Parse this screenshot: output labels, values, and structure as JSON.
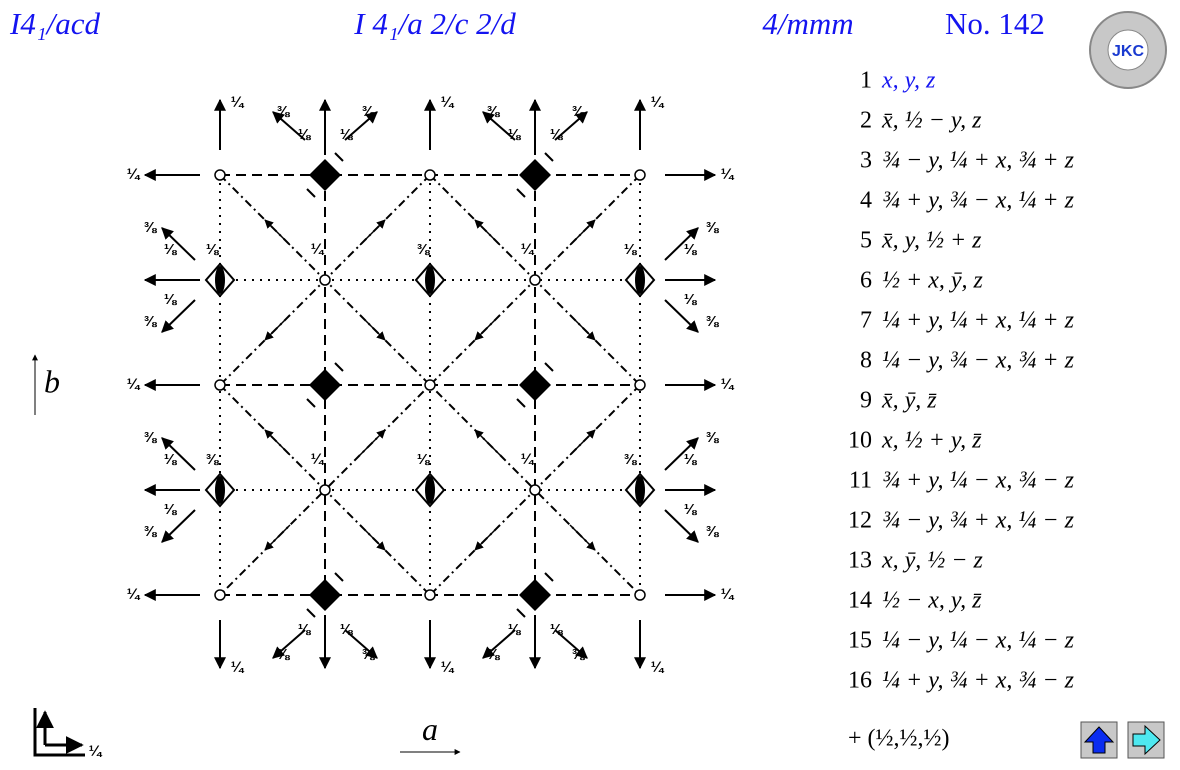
{
  "header": {
    "short_symbol": "I4₁/acd",
    "full_symbol": "I 4₁/a 2/c 2/d",
    "point_group": "4/mmm",
    "number": "No. 142",
    "logo": "JKC"
  },
  "diagram": {
    "axis_a": "a",
    "axis_b": "b",
    "heights": [
      "¼",
      "¼",
      "¼",
      "⅜",
      "⅜",
      "⅜",
      "⅜",
      "⅛",
      "⅛",
      "⅛",
      "⅛",
      "¼",
      "¼",
      "¼",
      "⅛",
      "⅛",
      "⅛",
      "⅛",
      "⅜",
      "⅜",
      "⅜",
      "⅜",
      "¼",
      "¼",
      "¼",
      "¼",
      "¼",
      "¼",
      "⅜",
      "⅜",
      "⅜",
      "⅜",
      "⅛",
      "⅛",
      "⅛",
      "⅛",
      "⅜",
      "⅜",
      "⅜",
      "⅜",
      "⅛",
      "⅛",
      "⅛",
      "⅛",
      "⅛",
      "⅛",
      "⅜",
      "⅜",
      "⅜",
      "⅛",
      "¼",
      "¼",
      "¼",
      "¼",
      "¼"
    ]
  },
  "operations": [
    {
      "number": 1,
      "text": "x, y, z"
    },
    {
      "number": 2,
      "text": "x̄, ½ − y, z"
    },
    {
      "number": 3,
      "text": "¾ − y, ¼ + x, ¾ + z"
    },
    {
      "number": 4,
      "text": "¾ + y, ¾ − x, ¼ + z"
    },
    {
      "number": 5,
      "text": "x̄, y, ½ + z"
    },
    {
      "number": 6,
      "text": "½ + x, ȳ, z"
    },
    {
      "number": 7,
      "text": "¼ + y, ¼ + x, ¼ + z"
    },
    {
      "number": 8,
      "text": "¼ − y, ¾ − x, ¾ + z"
    },
    {
      "number": 9,
      "text": "x̄, ȳ, z̄"
    },
    {
      "number": 10,
      "text": "x, ½ + y, z̄"
    },
    {
      "number": 11,
      "text": "¾ + y, ¼ − x, ¾ − z"
    },
    {
      "number": 12,
      "text": "¾ − y, ¾ + x, ¼ − z"
    },
    {
      "number": 13,
      "text": "x, ȳ, ½ − z"
    },
    {
      "number": 14,
      "text": "½ − x, y, z̄"
    },
    {
      "number": 15,
      "text": "¼ − y, ¼ − x, ¼ − z"
    },
    {
      "number": 16,
      "text": "¼ + y, ¾ + x, ¾ − z"
    }
  ],
  "centering": "+ (½,½,½)"
}
